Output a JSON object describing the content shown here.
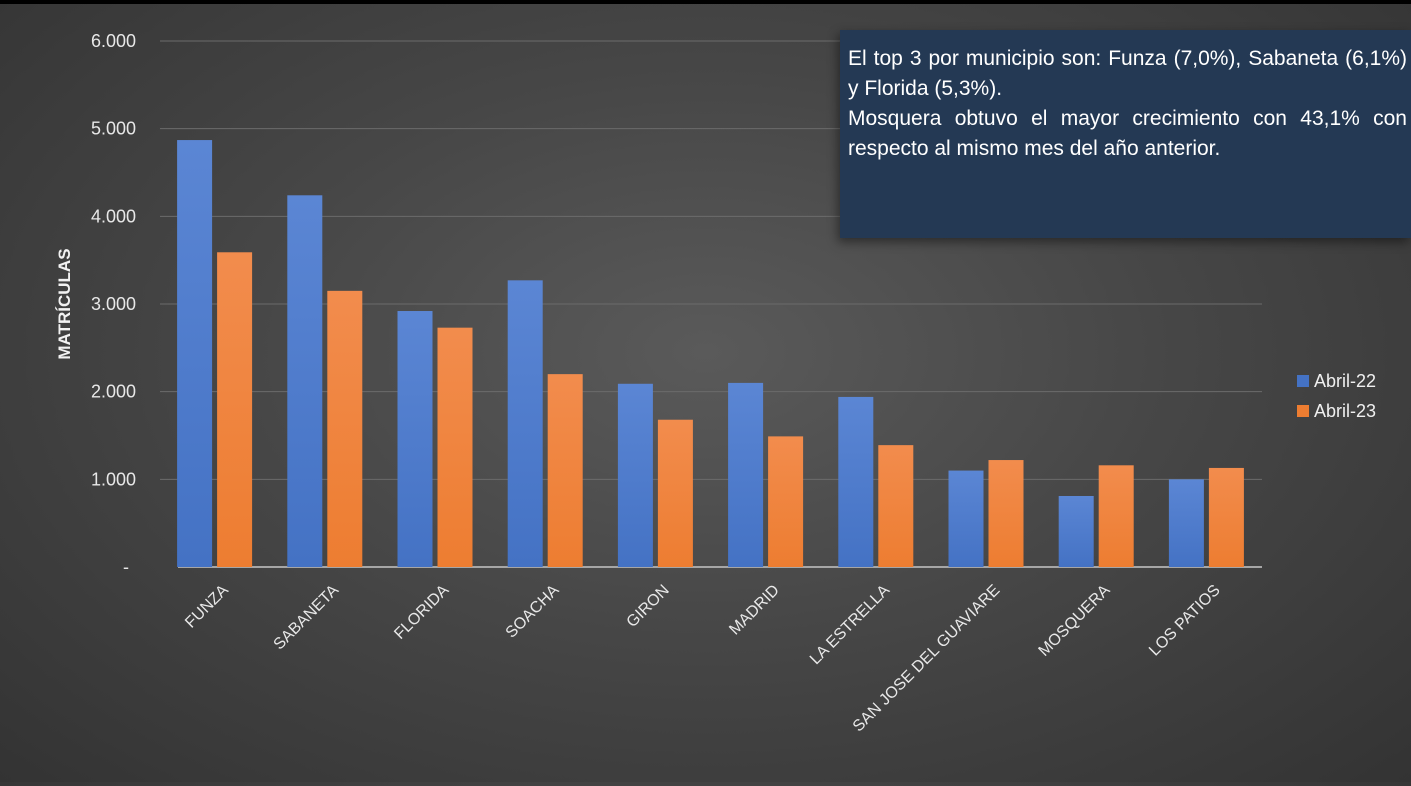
{
  "chart_data": {
    "type": "bar",
    "title": "",
    "xlabel": "",
    "ylabel": "MATRÍCULAS",
    "ylim": [
      0,
      6000
    ],
    "y_ticks": [
      {
        "value": 0,
        "label": "-"
      },
      {
        "value": 1000,
        "label": "1.000"
      },
      {
        "value": 2000,
        "label": "2.000"
      },
      {
        "value": 3000,
        "label": "3.000"
      },
      {
        "value": 4000,
        "label": "4.000"
      },
      {
        "value": 5000,
        "label": "5.000"
      },
      {
        "value": 6000,
        "label": "6.000"
      }
    ],
    "grid": true,
    "legend_position": "right",
    "categories": [
      "FUNZA",
      "SABANETA",
      "FLORIDA",
      "SOACHA",
      "GIRON",
      "MADRID",
      "LA ESTRELLA",
      "SAN JOSE DEL GUAVIARE",
      "MOSQUERA",
      "LOS PATIOS"
    ],
    "series": [
      {
        "name": "Abril-22",
        "color": "#4472c4",
        "values": [
          4870,
          4240,
          2920,
          3270,
          2090,
          2100,
          1940,
          1100,
          810,
          1000
        ]
      },
      {
        "name": "Abril-23",
        "color": "#ed7d31",
        "values": [
          3590,
          3150,
          2730,
          2200,
          1680,
          1490,
          1390,
          1220,
          1160,
          1130
        ]
      }
    ]
  },
  "callout": {
    "line1": "El top 3 por municipio son: Funza (7,0%), Sabaneta (6,1%) y  Florida (5,3%).",
    "line2": "Mosquera obtuvo el mayor crecimiento con 43,1% con respecto al mismo mes del año anterior."
  }
}
